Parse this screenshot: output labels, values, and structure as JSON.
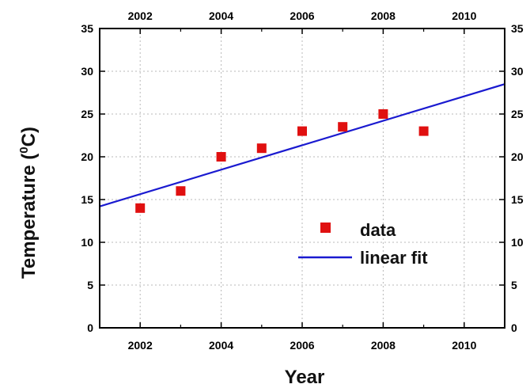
{
  "chart_data": {
    "type": "scatter",
    "xlabel": "Year",
    "ylabel_main": "Temperature (",
    "ylabel_sup": "0",
    "ylabel_tail": "C)",
    "xlim": [
      2001,
      2011
    ],
    "ylim": [
      0,
      35
    ],
    "x_ticks": [
      2002,
      2004,
      2006,
      2008,
      2010
    ],
    "y_ticks": [
      0,
      5,
      10,
      15,
      20,
      25,
      30,
      35
    ],
    "grid": true,
    "mirror_axes": "top and right",
    "legend_position": "lower-right",
    "series": [
      {
        "name": "data",
        "kind": "scatter",
        "marker": "square",
        "color": "#e01010",
        "x": [
          2002,
          2003,
          2004,
          2005,
          2006,
          2007,
          2008,
          2009
        ],
        "y": [
          14,
          16,
          20,
          21,
          23,
          23.5,
          25,
          23
        ]
      },
      {
        "name": "linear fit",
        "kind": "line",
        "color": "#1a1ad0",
        "x": [
          2001,
          2011
        ],
        "y": [
          14.2,
          28.5
        ]
      }
    ]
  }
}
